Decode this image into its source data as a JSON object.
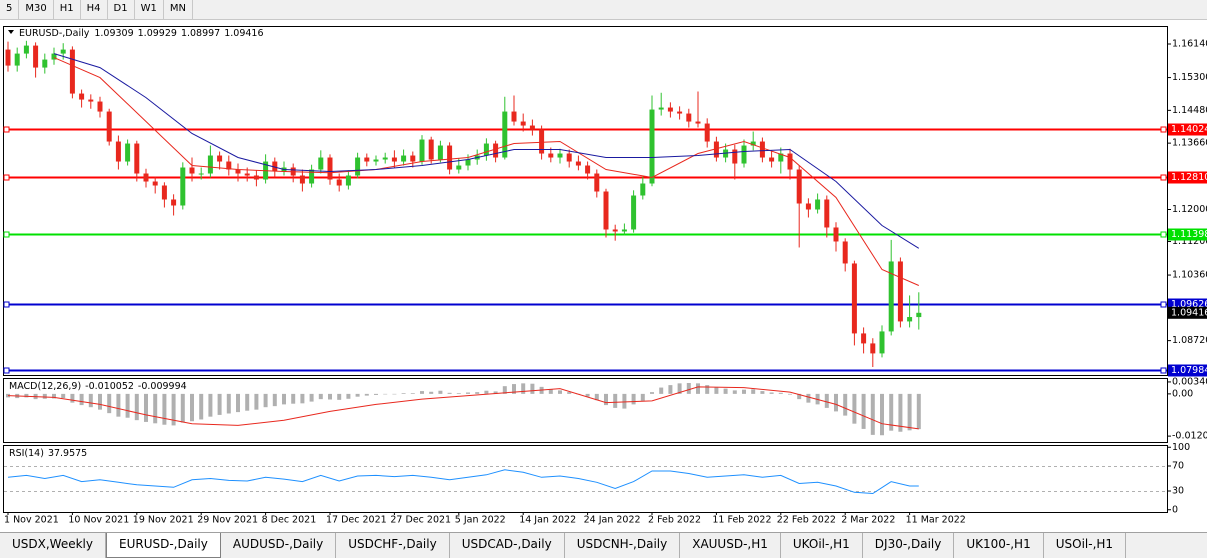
{
  "toolbar": {
    "timeframes": [
      "5",
      "M30",
      "H1",
      "H4",
      "D1",
      "W1",
      "MN"
    ]
  },
  "tabs": [
    "USDX,Weekly",
    "EURUSD-,Daily",
    "AUDUSD-,Daily",
    "USDCHF-,Daily",
    "USDCAD-,Daily",
    "USDCNH-,Daily",
    "XAUUSD-,H1",
    "UKOil-,H1",
    "DJ30-,Daily",
    "UK100-,H1",
    "USOil-,H1"
  ],
  "active_tab": 1,
  "chart_data": [
    {
      "type": "candlestick",
      "title": "EURUSD-,Daily",
      "up_color": "#2fc22f",
      "down_color": "#e8281e",
      "categories": [
        "1 Nov 2021",
        null,
        null,
        null,
        null,
        null,
        null,
        "10 Nov 2021",
        null,
        null,
        null,
        null,
        null,
        null,
        "19 Nov 2021",
        null,
        null,
        null,
        null,
        null,
        null,
        "29 Nov 2021",
        null,
        null,
        null,
        null,
        null,
        null,
        "8 Dec 2021",
        null,
        null,
        null,
        null,
        null,
        null,
        "17 Dec 2021",
        null,
        null,
        null,
        null,
        null,
        null,
        "27 Dec 2021",
        null,
        null,
        null,
        null,
        null,
        null,
        "5 Jan 2022",
        null,
        null,
        null,
        null,
        null,
        null,
        "14 Jan 2022",
        null,
        null,
        null,
        null,
        null,
        null,
        "24 Jan 2022",
        null,
        null,
        null,
        null,
        null,
        null,
        "2 Feb 2022",
        null,
        null,
        null,
        null,
        null,
        null,
        "11 Feb 2022",
        null,
        null,
        null,
        null,
        null,
        null,
        "22 Feb 2022",
        null,
        null,
        null,
        null,
        null,
        null,
        "2 Mar 2022",
        null,
        null,
        null,
        null,
        null,
        null,
        "11 Mar 2022",
        null
      ],
      "open": [
        1.16,
        1.156,
        1.159,
        1.161,
        1.1555,
        1.1575,
        1.159,
        1.16,
        1.149,
        1.1475,
        1.147,
        1.1445,
        1.137,
        1.132,
        1.1365,
        1.129,
        1.127,
        1.126,
        1.1225,
        1.121,
        1.1305,
        1.129,
        1.129,
        1.1335,
        1.132,
        1.13,
        1.129,
        1.1285,
        1.1275,
        1.132,
        1.1295,
        1.1305,
        1.1285,
        1.1265,
        1.13,
        1.133,
        1.1275,
        1.126,
        1.1285,
        1.133,
        1.132,
        1.1325,
        1.133,
        1.132,
        1.1335,
        1.132,
        1.1375,
        1.1325,
        1.136,
        1.13,
        1.131,
        1.1325,
        1.1335,
        1.1365,
        1.133,
        1.1445,
        1.142,
        1.141,
        1.14,
        1.134,
        1.133,
        1.134,
        1.132,
        1.131,
        1.129,
        1.1245,
        1.115,
        1.1145,
        1.115,
        1.1235,
        1.1265,
        1.145,
        1.1455,
        1.1445,
        1.144,
        1.142,
        1.1415,
        1.137,
        1.133,
        1.135,
        1.1315,
        1.136,
        1.137,
        1.133,
        1.132,
        1.134,
        1.13,
        1.1215,
        1.12,
        1.1225,
        1.1155,
        1.112,
        1.1065,
        1.089,
        1.0865,
        1.084,
        1.0895,
        1.107,
        1.092,
        1.09309
      ],
      "high": [
        1.162,
        1.1605,
        1.1622,
        1.1618,
        1.159,
        1.1605,
        1.1616,
        1.1608,
        1.15,
        1.1488,
        1.1482,
        1.1452,
        1.1385,
        1.1375,
        1.1372,
        1.1302,
        1.1282,
        1.1268,
        1.1238,
        1.1318,
        1.133,
        1.1305,
        1.136,
        1.1345,
        1.1335,
        1.1315,
        1.1305,
        1.1298,
        1.1338,
        1.133,
        1.132,
        1.1315,
        1.13,
        1.1312,
        1.1348,
        1.1338,
        1.129,
        1.1298,
        1.1342,
        1.134,
        1.1335,
        1.1342,
        1.1348,
        1.135,
        1.1345,
        1.1386,
        1.1382,
        1.1372,
        1.1368,
        1.1328,
        1.1338,
        1.135,
        1.1378,
        1.1372,
        1.1482,
        1.1485,
        1.144,
        1.1425,
        1.141,
        1.1355,
        1.1352,
        1.135,
        1.1335,
        1.132,
        1.13,
        1.1252,
        1.1162,
        1.1165,
        1.1248,
        1.1282,
        1.1485,
        1.1492,
        1.1468,
        1.1458,
        1.1452,
        1.1495,
        1.1428,
        1.1382,
        1.1365,
        1.1362,
        1.1375,
        1.1395,
        1.138,
        1.1348,
        1.1355,
        1.1352,
        1.131,
        1.1228,
        1.124,
        1.1235,
        1.1168,
        1.1128,
        1.1072,
        1.0905,
        1.0878,
        1.091,
        1.1124,
        1.108,
        1.0985,
        1.09929
      ],
      "low": [
        1.1545,
        1.1545,
        1.1578,
        1.153,
        1.154,
        1.1562,
        1.1575,
        1.1478,
        1.1455,
        1.1452,
        1.143,
        1.136,
        1.13,
        1.131,
        1.127,
        1.1255,
        1.124,
        1.1205,
        1.1185,
        1.12,
        1.127,
        1.1275,
        1.128,
        1.13,
        1.1285,
        1.127,
        1.127,
        1.1258,
        1.1265,
        1.128,
        1.1285,
        1.1268,
        1.1245,
        1.1255,
        1.129,
        1.1262,
        1.1245,
        1.125,
        1.1278,
        1.1308,
        1.131,
        1.1315,
        1.1305,
        1.131,
        1.1305,
        1.1312,
        1.1315,
        1.1318,
        1.1288,
        1.129,
        1.1298,
        1.1312,
        1.1322,
        1.1318,
        1.1325,
        1.141,
        1.1395,
        1.1385,
        1.1325,
        1.1318,
        1.1315,
        1.1305,
        1.1298,
        1.1275,
        1.123,
        1.113,
        1.1122,
        1.1135,
        1.1142,
        1.1225,
        1.1258,
        1.1435,
        1.143,
        1.1425,
        1.1405,
        1.1405,
        1.1355,
        1.132,
        1.1318,
        1.1275,
        1.1305,
        1.1348,
        1.1318,
        1.1305,
        1.129,
        1.1275,
        1.1105,
        1.118,
        1.119,
        1.113,
        1.1095,
        1.1045,
        1.086,
        1.084,
        1.0806,
        1.083,
        1.0885,
        1.0905,
        1.0905,
        1.08997
      ],
      "close": [
        1.156,
        1.159,
        1.161,
        1.1555,
        1.1575,
        1.159,
        1.16,
        1.149,
        1.1475,
        1.147,
        1.1445,
        1.137,
        1.132,
        1.1365,
        1.129,
        1.127,
        1.126,
        1.1225,
        1.121,
        1.1305,
        1.129,
        1.129,
        1.1335,
        1.132,
        1.13,
        1.129,
        1.1285,
        1.1275,
        1.132,
        1.1295,
        1.1305,
        1.1285,
        1.1265,
        1.13,
        1.133,
        1.1275,
        1.126,
        1.1285,
        1.133,
        1.132,
        1.1325,
        1.133,
        1.132,
        1.1335,
        1.132,
        1.1375,
        1.1325,
        1.136,
        1.13,
        1.131,
        1.1325,
        1.1335,
        1.1365,
        1.133,
        1.1445,
        1.142,
        1.141,
        1.14,
        1.134,
        1.133,
        1.134,
        1.132,
        1.131,
        1.129,
        1.1245,
        1.115,
        1.1145,
        1.115,
        1.1235,
        1.1265,
        1.145,
        1.1455,
        1.1445,
        1.144,
        1.142,
        1.1415,
        1.137,
        1.133,
        1.135,
        1.1315,
        1.136,
        1.137,
        1.133,
        1.132,
        1.134,
        1.13,
        1.1215,
        1.12,
        1.1225,
        1.1155,
        1.112,
        1.1065,
        1.089,
        1.0865,
        1.084,
        1.0895,
        1.107,
        1.092,
        1.0931,
        1.09416
      ],
      "series": [
        {
          "color": "#e8281e",
          "x": [
            5,
            10,
            15,
            20,
            25,
            30,
            35,
            40,
            45,
            50,
            55,
            60,
            65,
            70,
            75,
            80,
            85,
            90,
            95,
            99
          ],
          "values": [
            1.158,
            1.153,
            1.142,
            1.131,
            1.13,
            1.1295,
            1.1292,
            1.13,
            1.132,
            1.133,
            1.1365,
            1.137,
            1.13,
            1.128,
            1.134,
            1.137,
            1.133,
            1.123,
            1.105,
            1.101
          ]
        },
        {
          "color": "#1a1aa0",
          "x": [
            5,
            10,
            15,
            20,
            25,
            30,
            35,
            40,
            45,
            50,
            55,
            60,
            65,
            70,
            75,
            80,
            85,
            90,
            95,
            99
          ],
          "values": [
            1.159,
            1.1555,
            1.148,
            1.139,
            1.133,
            1.13,
            1.1295,
            1.13,
            1.131,
            1.1325,
            1.135,
            1.135,
            1.133,
            1.133,
            1.1335,
            1.1345,
            1.135,
            1.127,
            1.116,
            1.1103
          ]
        }
      ],
      "levels": [
        {
          "value": 1.14024,
          "color": "#ff0000"
        },
        {
          "value": 1.1281,
          "label": "1.12810",
          "color": "#ff0000"
        },
        {
          "value": 1.11398,
          "color": "#00e000"
        },
        {
          "value": 1.09626,
          "color": "#0000d0"
        },
        {
          "value": 1.07984,
          "color": "#0000d0"
        }
      ],
      "ylim": [
        1.0786,
        1.1659
      ],
      "yticks": [
        {
          "value": 1.1614,
          "label": "1.16140"
        },
        {
          "value": 1.153,
          "label": "1.15300"
        },
        {
          "value": 1.1448,
          "label": "1.14480"
        },
        {
          "value": 1.1366,
          "label": "1.13660"
        },
        {
          "value": 1.12,
          "label": "1.12000"
        },
        {
          "value": 1.112,
          "label": "1.11200"
        },
        {
          "value": 1.1036,
          "label": "1.10360"
        },
        {
          "value": 1.0872,
          "label": "1.08720"
        }
      ]
    },
    {
      "type": "macd",
      "title": "MACD(12,26,9)",
      "hist_color": "#b0b0b0",
      "values": [
        -0.001,
        -0.0012,
        -0.001,
        -0.0015,
        -0.0014,
        -0.0013,
        -0.0012,
        -0.0025,
        -0.0032,
        -0.0038,
        -0.0045,
        -0.0055,
        -0.0065,
        -0.0068,
        -0.0075,
        -0.008,
        -0.0084,
        -0.0088,
        -0.009,
        -0.0082,
        -0.0078,
        -0.0073,
        -0.0065,
        -0.006,
        -0.0056,
        -0.0052,
        -0.0048,
        -0.0045,
        -0.0038,
        -0.0035,
        -0.003,
        -0.0028,
        -0.0027,
        -0.0022,
        -0.0015,
        -0.0016,
        -0.0017,
        -0.0014,
        -0.0008,
        -0.0005,
        -0.0003,
        -0.0001,
        -0.0001,
        0.0002,
        0.0002,
        0.0008,
        0.0006,
        0.0009,
        0.0003,
        0.0002,
        0.0004,
        0.0005,
        0.0009,
        0.0007,
        0.0022,
        0.0028,
        0.003,
        0.0029,
        0.002,
        0.0014,
        0.001,
        0.0005,
        0.0,
        -0.0008,
        -0.0018,
        -0.0032,
        -0.004,
        -0.0042,
        -0.003,
        -0.002,
        0.0005,
        0.0018,
        0.0025,
        0.003,
        0.0031,
        0.003,
        0.0025,
        0.0018,
        0.0015,
        0.001,
        0.0012,
        0.0013,
        0.0008,
        0.0004,
        0.0003,
        -0.0002,
        -0.0015,
        -0.0025,
        -0.003,
        -0.004,
        -0.005,
        -0.0062,
        -0.0085,
        -0.01,
        -0.0117,
        -0.0118,
        -0.0105,
        -0.0108,
        -0.0104,
        -0.010052
      ],
      "signal": {
        "color": "#e8281e",
        "x": [
          0,
          5,
          10,
          15,
          20,
          25,
          30,
          35,
          40,
          45,
          50,
          55,
          60,
          65,
          70,
          75,
          80,
          85,
          90,
          95,
          99
        ],
        "values": [
          -0.0005,
          -0.001,
          -0.003,
          -0.006,
          -0.0085,
          -0.009,
          -0.0075,
          -0.005,
          -0.003,
          -0.0015,
          -0.0005,
          0.0005,
          0.0015,
          -0.0025,
          -0.002,
          0.002,
          0.0018,
          0.0005,
          -0.003,
          -0.0085,
          -0.009994
        ]
      },
      "ylim": [
        -0.01373,
        0.00453
      ],
      "yticks": [
        0.003408,
        {
          "value": 0,
          "label": "0.00"
        },
        -0.01205
      ]
    },
    {
      "type": "line",
      "title": "RSI(14)",
      "color": "#1e90ff",
      "x": [
        0,
        2,
        4,
        6,
        8,
        10,
        12,
        14,
        16,
        18,
        20,
        22,
        24,
        26,
        28,
        30,
        32,
        34,
        36,
        38,
        40,
        42,
        44,
        46,
        48,
        50,
        52,
        54,
        56,
        58,
        60,
        62,
        64,
        66,
        68,
        70,
        72,
        74,
        76,
        78,
        80,
        82,
        84,
        86,
        88,
        90,
        92,
        94,
        96,
        98,
        99
      ],
      "values": [
        52,
        55,
        50,
        55,
        45,
        48,
        44,
        40,
        38,
        36,
        48,
        50,
        47,
        46,
        52,
        49,
        45,
        55,
        46,
        54,
        55,
        53,
        55,
        52,
        48,
        52,
        56,
        64,
        60,
        52,
        54,
        50,
        44,
        34,
        45,
        62,
        62,
        58,
        52,
        54,
        56,
        52,
        55,
        42,
        44,
        38,
        28,
        26,
        45,
        38,
        37.9575
      ],
      "levels": [
        70,
        30
      ],
      "ylim": [
        -3.6,
        103.6
      ],
      "yticks": [
        100,
        70,
        30,
        0
      ]
    }
  ]
}
